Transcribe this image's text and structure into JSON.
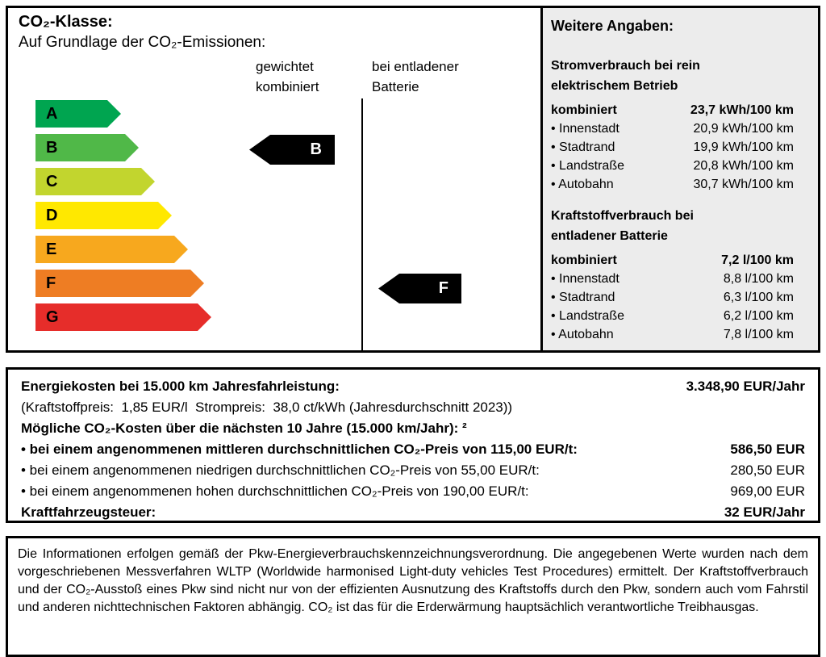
{
  "co2_panel": {
    "title": "CO₂-Klasse:",
    "subtitle": "Auf Grundlage der CO₂-Emissionen:",
    "col_weighted_line1": "gewichtet",
    "col_weighted_line2": "kombiniert",
    "col_depleted_line1": "bei entladener",
    "col_depleted_line2": "Batterie",
    "classes": [
      {
        "label": "A",
        "color": "#00a550"
      },
      {
        "label": "B",
        "color": "#50b848"
      },
      {
        "label": "C",
        "color": "#c2d52e"
      },
      {
        "label": "D",
        "color": "#ffe800"
      },
      {
        "label": "E",
        "color": "#f7a81e"
      },
      {
        "label": "F",
        "color": "#ee7d23"
      },
      {
        "label": "G",
        "color": "#e62d2a"
      }
    ],
    "weighted_combined_class": "B",
    "depleted_battery_class": "F"
  },
  "details_panel": {
    "title": "Weitere Angaben:",
    "sections": [
      {
        "heading": "Stromverbrauch bei rein elektrischem Betrieb",
        "combined_label": "kombiniert",
        "combined_value": "23,7 kWh/100 km",
        "rows": [
          {
            "label": "• Innenstadt",
            "value": "20,9 kWh/100 km"
          },
          {
            "label": "• Stadtrand",
            "value": "19,9 kWh/100 km"
          },
          {
            "label": "• Landstraße",
            "value": "20,8 kWh/100 km"
          },
          {
            "label": "• Autobahn",
            "value": "30,7 kWh/100 km"
          }
        ]
      },
      {
        "heading": "Kraftstoffverbrauch bei entladener Batterie",
        "combined_label": "kombiniert",
        "combined_value": "7,2 l/100 km",
        "rows": [
          {
            "label": "• Innenstadt",
            "value": "8,8 l/100 km"
          },
          {
            "label": "• Stadtrand",
            "value": "6,3 l/100 km"
          },
          {
            "label": "• Landstraße",
            "value": "6,2 l/100 km"
          },
          {
            "label": "• Autobahn",
            "value": "7,8 l/100 km"
          }
        ]
      }
    ]
  },
  "costs_panel": {
    "energy_costs_label": "Energiekosten bei 15.000 km Jahresfahrleistung:",
    "energy_costs_value": "3.348,90 EUR/Jahr",
    "price_note": "(Kraftstoffpreis:  1,85 EUR/l  Strompreis:  38,0 ct/kWh (Jahresdurchschnitt 2023))",
    "co2_costs_heading": "Mögliche CO₂-Kosten über die nächsten 10 Jahre (15.000 km/Jahr): ²",
    "scenarios": [
      {
        "label": "• bei einem angenommenen mittleren durchschnittlichen CO₂-Preis von 115,00 EUR/t:",
        "value": "586,50 EUR"
      },
      {
        "label": "• bei einem angenommenen niedrigen durchschnittlichen CO₂-Preis von 55,00 EUR/t:",
        "value": "280,50 EUR"
      },
      {
        "label": "• bei einem angenommenen hohen durchschnittlichen CO₂-Preis von 190,00 EUR/t:",
        "value": "969,00 EUR"
      }
    ],
    "tax_label": "Kraftfahrzeugsteuer:",
    "tax_value": "32 EUR/Jahr"
  },
  "legal": {
    "text": "Die Informationen erfolgen gemäß der Pkw-Energieverbrauchskennzeichnungsverordnung. Die angegebenen Werte wurden nach dem vorgeschriebenen Messverfahren WLTP (Worldwide harmonised Light-duty vehicles Test Procedures) ermittelt. Der Kraftstoffverbrauch und der CO₂-Ausstoß eines Pkw sind nicht nur von der effizienten Ausnutzung des Kraftstoffs durch den Pkw, sondern auch vom Fahrstil und anderen nichttechnischen Faktoren abhängig. CO₂ ist das für die Erderwärmung hauptsächlich verantwortliche Treibhausgas."
  }
}
